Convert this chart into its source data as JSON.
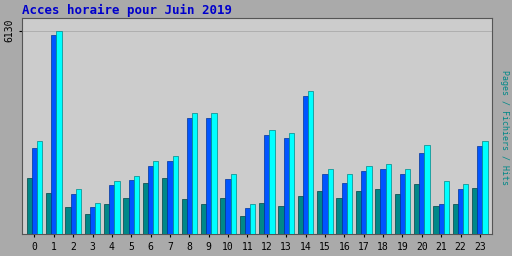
{
  "title": "Acces horaire pour Juin 2019",
  "title_color": "#0000CC",
  "ylabel": "Pages / Fichiers / Hits",
  "xlabel_labels": [
    "0",
    "1",
    "2",
    "3",
    "4",
    "5",
    "6",
    "7",
    "8",
    "9",
    "10",
    "11",
    "12",
    "13",
    "14",
    "15",
    "16",
    "17",
    "18",
    "19",
    "20",
    "21",
    "22",
    "23"
  ],
  "ytick_label": "6130",
  "background_color": "#AAAAAA",
  "plot_bg_color": "#CCCCCC",
  "bar_width": 0.27,
  "hits": [
    2800,
    6130,
    1350,
    950,
    1600,
    1750,
    2200,
    2350,
    3650,
    3650,
    1800,
    900,
    3150,
    3050,
    4300,
    1950,
    1800,
    2050,
    2100,
    1950,
    2700,
    1600,
    1500,
    2800
  ],
  "fichiers": [
    2600,
    6000,
    1200,
    830,
    1480,
    1620,
    2050,
    2200,
    3500,
    3500,
    1650,
    780,
    3000,
    2900,
    4150,
    1800,
    1550,
    1900,
    1950,
    1800,
    2450,
    900,
    1350,
    2650
  ],
  "pages": [
    1700,
    1250,
    820,
    600,
    900,
    1100,
    1550,
    1700,
    1050,
    900,
    1100,
    550,
    950,
    850,
    1150,
    1300,
    1100,
    1300,
    1350,
    1200,
    1500,
    850,
    900,
    1400
  ],
  "hits_color": "#00FFFF",
  "fichiers_color": "#0055FF",
  "pages_color": "#008888",
  "hits_edge": "#008888",
  "fichiers_edge": "#003399",
  "pages_edge": "#004444",
  "ylim": [
    0,
    6500
  ],
  "figsize": [
    5.12,
    2.56
  ],
  "dpi": 100
}
